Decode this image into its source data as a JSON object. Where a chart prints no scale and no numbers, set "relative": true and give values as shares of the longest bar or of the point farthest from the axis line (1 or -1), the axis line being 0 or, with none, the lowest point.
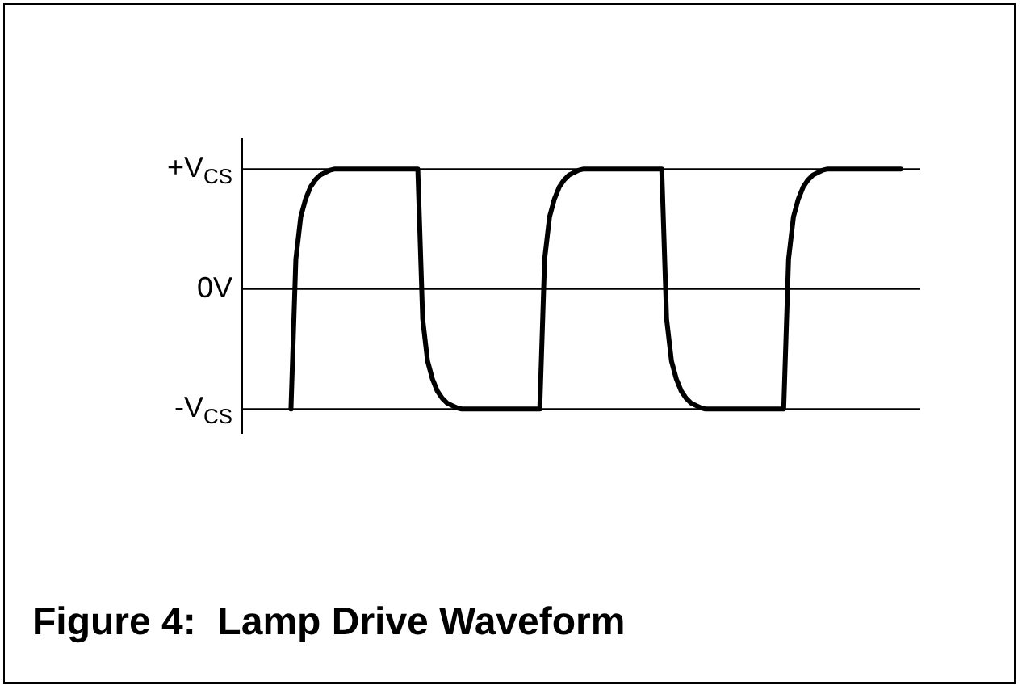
{
  "chart_data": {
    "type": "line",
    "title": "Figure 4:  Lamp Drive Waveform",
    "categories": [
      null,
      null,
      null,
      null,
      null,
      null,
      null,
      null,
      null,
      null,
      null,
      null,
      null,
      null,
      null,
      null,
      null,
      null,
      null,
      null,
      null,
      null,
      null,
      null,
      null,
      null,
      null,
      null,
      null,
      null,
      null,
      null,
      null,
      null,
      null,
      null,
      null,
      null,
      null,
      null,
      null,
      null,
      null,
      null,
      null,
      null,
      null,
      null,
      null,
      null,
      null,
      null,
      null,
      null,
      null,
      null,
      null,
      null,
      null,
      null,
      null,
      null,
      null,
      null,
      null,
      null,
      null,
      null,
      null,
      null,
      null,
      null,
      null,
      null,
      null,
      null,
      null,
      null,
      null,
      null,
      null,
      null,
      null,
      null,
      null,
      null,
      null,
      null,
      null,
      null,
      null,
      null,
      null,
      null,
      null,
      null,
      null,
      null,
      null,
      null,
      null,
      null,
      null,
      null,
      null,
      null,
      null,
      null,
      null,
      null,
      null,
      null,
      null,
      null,
      null,
      null,
      null,
      null,
      null,
      null,
      null,
      null,
      null,
      null,
      null,
      null,
      null,
      null,
      null,
      null,
      null,
      null,
      null,
      null,
      null,
      null,
      null,
      null,
      null,
      null
    ],
    "series": [
      {
        "color": "#000000",
        "values": [
          null,
          null,
          null,
          null,
          null,
          null,
          null,
          null,
          null,
          null,
          -1,
          0.25,
          0.6,
          0.75,
          0.85,
          0.91,
          0.95,
          0.97,
          0.99,
          1,
          1,
          1,
          1,
          1,
          1,
          1,
          1,
          1,
          1,
          1,
          1,
          1,
          1,
          1,
          1,
          1,
          1,
          -0.25,
          -0.6,
          -0.75,
          -0.85,
          -0.91,
          -0.95,
          -0.97,
          -0.99,
          -1,
          -1,
          -1,
          -1,
          -1,
          -1,
          -1,
          -1,
          -1,
          -1,
          -1,
          -1,
          -1,
          -1,
          -1,
          -1,
          -1,
          0.25,
          0.6,
          0.75,
          0.85,
          0.91,
          0.95,
          0.97,
          0.99,
          1,
          1,
          1,
          1,
          1,
          1,
          1,
          1,
          1,
          1,
          1,
          1,
          1,
          1,
          1,
          1,
          1,
          -0.25,
          -0.6,
          -0.75,
          -0.85,
          -0.91,
          -0.95,
          -0.97,
          -0.99,
          -1,
          -1,
          -1,
          -1,
          -1,
          -1,
          -1,
          -1,
          -1,
          -1,
          -1,
          -1,
          -1,
          -1,
          -1,
          -1,
          -1,
          0.25,
          0.6,
          0.75,
          0.85,
          0.91,
          0.95,
          0.97,
          0.99,
          1,
          1,
          1,
          1,
          1,
          1,
          1,
          1,
          1,
          1,
          1,
          1,
          1,
          1,
          1,
          1,
          null,
          null,
          null,
          null
        ]
      }
    ],
    "relative": true,
    "ref_lines": [
      {
        "axis": "y",
        "value": 1,
        "label": "+V$_{CS}$",
        "color": "#000000"
      },
      {
        "axis": "y",
        "value": 0,
        "label": "0V",
        "color": "#000000"
      },
      {
        "axis": "y",
        "value": -1,
        "label": "-V$_{CS}$",
        "color": "#000000"
      }
    ],
    "tick_labels": false,
    "marker": "none",
    "line_style": "solid",
    "legend": false
  }
}
